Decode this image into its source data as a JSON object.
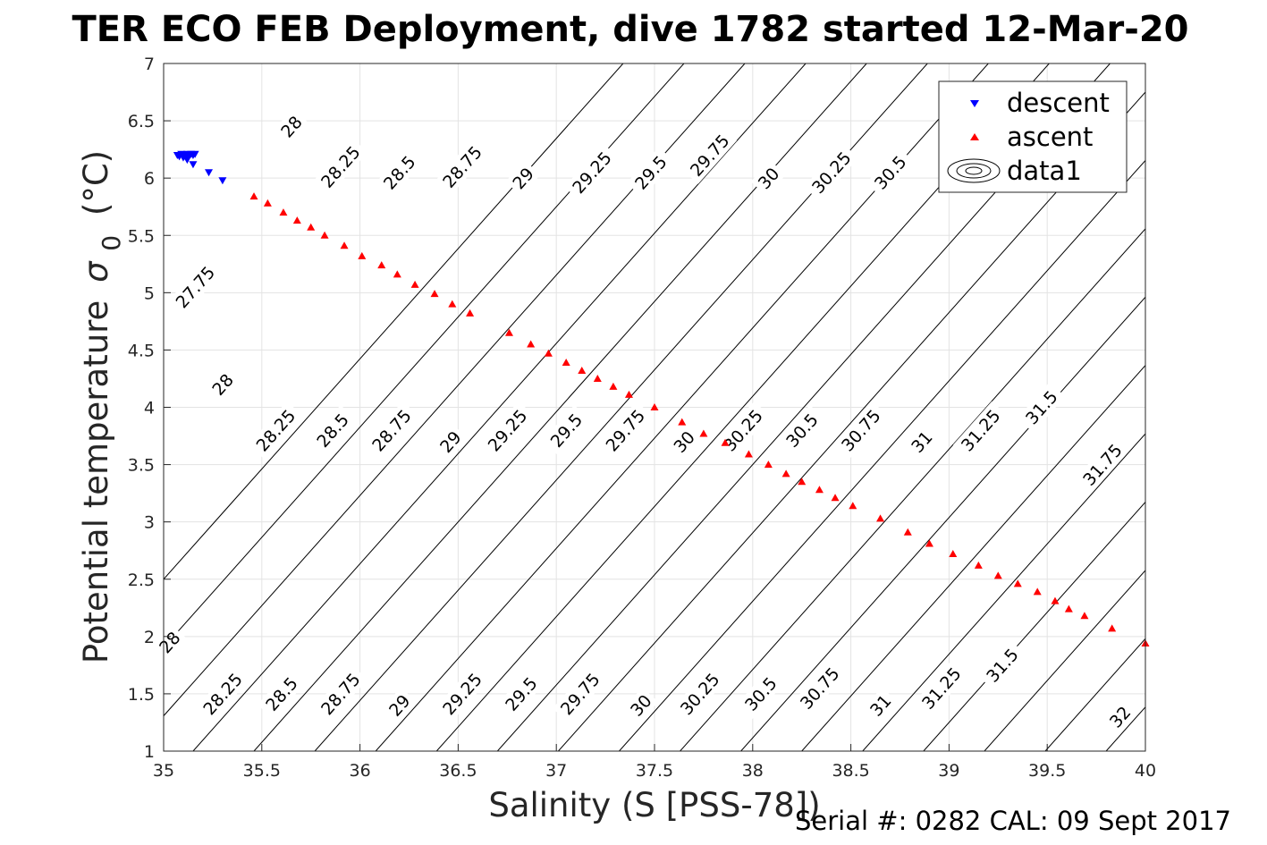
{
  "chart_data": {
    "type": "scatter",
    "title": "TER ECO FEB Deployment, dive 1782 started 12-Mar-20",
    "xlabel": "Salinity (S [PSS-78])",
    "ylabel_main": "Potential temperature",
    "ylabel_symbol": "σ",
    "ylabel_subscript": "0",
    "ylabel_unit": "(°C)",
    "footer": "Serial #: 0282  CAL: 09 Sept 2017",
    "xlim": [
      35,
      40
    ],
    "ylim": [
      1,
      7
    ],
    "grid": true,
    "x_ticks": [
      35,
      35.5,
      36,
      36.5,
      37,
      37.5,
      38,
      38.5,
      39,
      39.5,
      40
    ],
    "x_tick_labels": [
      "35",
      "35.5",
      "36",
      "36.5",
      "37",
      "37.5",
      "38",
      "38.5",
      "39",
      "39.5",
      "40"
    ],
    "y_ticks": [
      1,
      1.5,
      2,
      2.5,
      3,
      3.5,
      4,
      4.5,
      5,
      5.5,
      6,
      6.5,
      7
    ],
    "y_tick_labels": [
      "1",
      "1.5",
      "2",
      "2.5",
      "3",
      "3.5",
      "4",
      "4.5",
      "5",
      "5.5",
      "6",
      "6.5",
      "7"
    ],
    "legend": {
      "placement": "top-right",
      "entries": [
        {
          "label": "descent",
          "marker": "triangle-down",
          "color": "#0000ff"
        },
        {
          "label": "ascent",
          "marker": "triangle-up",
          "color": "#ff0000"
        },
        {
          "label": "data1",
          "marker": "contour",
          "color": "#000000"
        }
      ]
    },
    "series": [
      {
        "name": "descent",
        "marker": "triangle-down",
        "color": "#0000ff",
        "x": [
          35.07,
          35.08,
          35.09,
          35.1,
          35.11,
          35.12,
          35.13,
          35.14,
          35.15,
          35.16,
          35.1,
          35.12,
          35.15,
          35.23,
          35.3
        ],
        "y": [
          6.2,
          6.19,
          6.21,
          6.2,
          6.19,
          6.21,
          6.2,
          6.21,
          6.2,
          6.21,
          6.18,
          6.16,
          6.12,
          6.05,
          5.98
        ]
      },
      {
        "name": "ascent",
        "marker": "triangle-up",
        "color": "#ff0000",
        "x": [
          35.46,
          35.53,
          35.61,
          35.68,
          35.75,
          35.82,
          35.92,
          36.01,
          36.11,
          36.19,
          36.28,
          36.38,
          36.47,
          36.56,
          36.76,
          36.87,
          36.96,
          37.05,
          37.13,
          37.21,
          37.29,
          37.37,
          37.5,
          37.64,
          37.75,
          37.86,
          37.98,
          38.08,
          38.17,
          38.25,
          38.34,
          38.42,
          38.51,
          38.65,
          38.79,
          38.9,
          39.02,
          39.15,
          39.25,
          39.35,
          39.45,
          39.54,
          39.61,
          39.69,
          39.83,
          40.0
        ],
        "y": [
          5.84,
          5.78,
          5.7,
          5.63,
          5.57,
          5.5,
          5.41,
          5.32,
          5.24,
          5.16,
          5.07,
          4.99,
          4.9,
          4.82,
          4.65,
          4.55,
          4.47,
          4.39,
          4.32,
          4.25,
          4.18,
          4.11,
          4.0,
          3.87,
          3.77,
          3.69,
          3.59,
          3.5,
          3.42,
          3.35,
          3.28,
          3.21,
          3.14,
          3.03,
          2.91,
          2.81,
          2.72,
          2.62,
          2.53,
          2.46,
          2.39,
          2.31,
          2.24,
          2.18,
          2.07,
          1.94
        ]
      }
    ],
    "contour_levels": [
      "27.75",
      "28",
      "28.25",
      "28.5",
      "28.75",
      "29",
      "29.25",
      "29.5",
      "29.75",
      "30",
      "30.25",
      "30.5",
      "30.75",
      "31",
      "31.25",
      "31.5",
      "31.75",
      "32"
    ],
    "contour_label_points": [
      {
        "text": "28",
        "x": 35.65,
        "y": 6.45
      },
      {
        "text": "28.25",
        "x": 35.9,
        "y": 6.1
      },
      {
        "text": "28.5",
        "x": 36.2,
        "y": 6.05
      },
      {
        "text": "28.75",
        "x": 36.52,
        "y": 6.1
      },
      {
        "text": "29",
        "x": 36.83,
        "y": 6.0
      },
      {
        "text": "29.25",
        "x": 37.18,
        "y": 6.05
      },
      {
        "text": "29.5",
        "x": 37.48,
        "y": 6.05
      },
      {
        "text": "29.75",
        "x": 37.78,
        "y": 6.2
      },
      {
        "text": "30",
        "x": 38.08,
        "y": 6.0
      },
      {
        "text": "30.25",
        "x": 38.4,
        "y": 6.05
      },
      {
        "text": "30.5",
        "x": 38.7,
        "y": 6.05
      },
      {
        "text": "27.75",
        "x": 35.16,
        "y": 5.05
      },
      {
        "text": "28",
        "x": 35.3,
        "y": 4.2
      },
      {
        "text": "28.25",
        "x": 35.57,
        "y": 3.8
      },
      {
        "text": "28.5",
        "x": 35.86,
        "y": 3.8
      },
      {
        "text": "28.75",
        "x": 36.16,
        "y": 3.8
      },
      {
        "text": "29",
        "x": 36.46,
        "y": 3.7
      },
      {
        "text": "29.25",
        "x": 36.75,
        "y": 3.8
      },
      {
        "text": "29.5",
        "x": 37.05,
        "y": 3.8
      },
      {
        "text": "29.75",
        "x": 37.35,
        "y": 3.8
      },
      {
        "text": "30",
        "x": 37.65,
        "y": 3.7
      },
      {
        "text": "30.25",
        "x": 37.95,
        "y": 3.8
      },
      {
        "text": "30.5",
        "x": 38.25,
        "y": 3.8
      },
      {
        "text": "30.75",
        "x": 38.55,
        "y": 3.8
      },
      {
        "text": "31",
        "x": 38.86,
        "y": 3.7
      },
      {
        "text": "31.25",
        "x": 39.16,
        "y": 3.8
      },
      {
        "text": "31.5",
        "x": 39.47,
        "y": 4.0
      },
      {
        "text": "31.75",
        "x": 39.78,
        "y": 3.5
      },
      {
        "text": "28",
        "x": 35.03,
        "y": 1.95
      },
      {
        "text": "28.25",
        "x": 35.3,
        "y": 1.5
      },
      {
        "text": "28.5",
        "x": 35.6,
        "y": 1.5
      },
      {
        "text": "28.75",
        "x": 35.9,
        "y": 1.5
      },
      {
        "text": "29",
        "x": 36.2,
        "y": 1.4
      },
      {
        "text": "29.25",
        "x": 36.52,
        "y": 1.5
      },
      {
        "text": "29.5",
        "x": 36.82,
        "y": 1.5
      },
      {
        "text": "29.75",
        "x": 37.12,
        "y": 1.5
      },
      {
        "text": "30",
        "x": 37.43,
        "y": 1.4
      },
      {
        "text": "30.25",
        "x": 37.73,
        "y": 1.5
      },
      {
        "text": "30.5",
        "x": 38.04,
        "y": 1.5
      },
      {
        "text": "30.75",
        "x": 38.34,
        "y": 1.55
      },
      {
        "text": "31",
        "x": 38.65,
        "y": 1.4
      },
      {
        "text": "31.25",
        "x": 38.96,
        "y": 1.55
      },
      {
        "text": "31.5",
        "x": 39.27,
        "y": 1.75
      },
      {
        "text": "32",
        "x": 39.87,
        "y": 1.3
      }
    ]
  }
}
